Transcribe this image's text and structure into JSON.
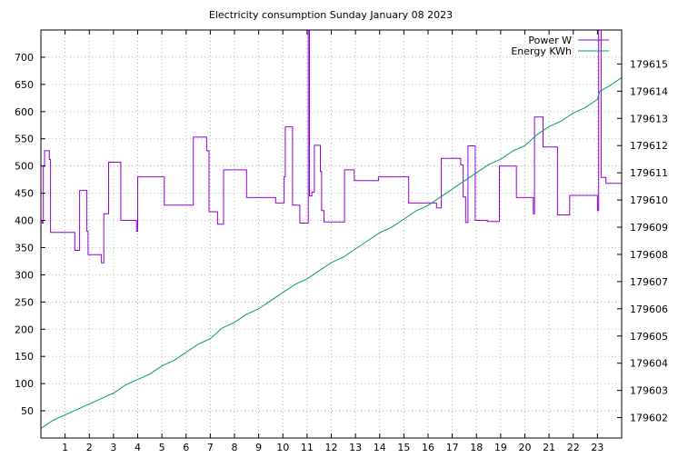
{
  "chart_data": {
    "type": "line",
    "title": "Electricity consumption Sunday January 08 2023",
    "xlabel": "",
    "ylabel": "",
    "y2label": "",
    "grid": true,
    "legend_position": "top-right",
    "xlim": [
      0,
      24
    ],
    "ylim": [
      0,
      750
    ],
    "y2lim": [
      179601.25,
      179616.25
    ],
    "x_ticks": [
      1,
      2,
      3,
      4,
      5,
      6,
      7,
      8,
      9,
      10,
      11,
      12,
      13,
      14,
      15,
      16,
      17,
      18,
      19,
      20,
      21,
      22,
      23
    ],
    "y_ticks": [
      50,
      100,
      150,
      200,
      250,
      300,
      350,
      400,
      450,
      500,
      550,
      600,
      650,
      700
    ],
    "y2_ticks": [
      179602,
      179603,
      179604,
      179605,
      179606,
      179607,
      179608,
      179609,
      179610,
      179611,
      179612,
      179613,
      179614,
      179615
    ],
    "series": [
      {
        "name": "Power W",
        "axis": "y1",
        "color": "#9400d3",
        "step": true,
        "points": [
          [
            0,
            400
          ],
          [
            0.05,
            395
          ],
          [
            0.1,
            500
          ],
          [
            0.15,
            528
          ],
          [
            0.35,
            512
          ],
          [
            0.4,
            378
          ],
          [
            1.4,
            345
          ],
          [
            1.6,
            455
          ],
          [
            1.9,
            380
          ],
          [
            1.95,
            337
          ],
          [
            2.5,
            322
          ],
          [
            2.6,
            412
          ],
          [
            2.8,
            507
          ],
          [
            3.3,
            400
          ],
          [
            3.95,
            380
          ],
          [
            4.0,
            480
          ],
          [
            5.1,
            428
          ],
          [
            6.3,
            553
          ],
          [
            6.85,
            528
          ],
          [
            6.95,
            416
          ],
          [
            7.3,
            393
          ],
          [
            7.55,
            493
          ],
          [
            8.5,
            442
          ],
          [
            9.7,
            432
          ],
          [
            10.05,
            480
          ],
          [
            10.1,
            572
          ],
          [
            10.4,
            428
          ],
          [
            10.7,
            395
          ],
          [
            11.05,
            760
          ],
          [
            11.1,
            445
          ],
          [
            11.2,
            452
          ],
          [
            11.3,
            538
          ],
          [
            11.55,
            490
          ],
          [
            11.6,
            418
          ],
          [
            11.7,
            397
          ],
          [
            12.55,
            493
          ],
          [
            12.95,
            473
          ],
          [
            13.95,
            480
          ],
          [
            15.2,
            432
          ],
          [
            16.35,
            423
          ],
          [
            16.55,
            514
          ],
          [
            17.35,
            502
          ],
          [
            17.45,
            443
          ],
          [
            17.55,
            396
          ],
          [
            17.65,
            537
          ],
          [
            17.95,
            400
          ],
          [
            18.45,
            398
          ],
          [
            18.95,
            500
          ],
          [
            19.65,
            442
          ],
          [
            20.35,
            412
          ],
          [
            20.4,
            590
          ],
          [
            20.75,
            535
          ],
          [
            21.35,
            410
          ],
          [
            21.85,
            446
          ],
          [
            23.0,
            418
          ],
          [
            23.05,
            760
          ],
          [
            23.15,
            479
          ],
          [
            23.35,
            468
          ],
          [
            24.0,
            468
          ]
        ]
      },
      {
        "name": "Energy KWh",
        "axis": "y2",
        "color": "#009e73",
        "step": false,
        "points": [
          [
            0,
            179601.6
          ],
          [
            0.5,
            179601.9
          ],
          [
            1,
            179602.1
          ],
          [
            1.5,
            179602.3
          ],
          [
            2,
            179602.5
          ],
          [
            2.5,
            179602.7
          ],
          [
            3,
            179602.9
          ],
          [
            3.5,
            179603.2
          ],
          [
            4,
            179603.4
          ],
          [
            4.5,
            179603.6
          ],
          [
            5,
            179603.9
          ],
          [
            5.5,
            179604.1
          ],
          [
            6,
            179604.4
          ],
          [
            6.5,
            179604.7
          ],
          [
            7,
            179604.9
          ],
          [
            7.5,
            179605.3
          ],
          [
            8,
            179605.5
          ],
          [
            8.5,
            179605.8
          ],
          [
            9,
            179606.0
          ],
          [
            9.5,
            179606.3
          ],
          [
            10,
            179606.6
          ],
          [
            10.5,
            179606.9
          ],
          [
            11,
            179607.1
          ],
          [
            11.5,
            179607.4
          ],
          [
            12,
            179607.7
          ],
          [
            12.5,
            179607.9
          ],
          [
            13,
            179608.2
          ],
          [
            13.5,
            179608.5
          ],
          [
            14,
            179608.8
          ],
          [
            14.5,
            179609.0
          ],
          [
            15,
            179609.3
          ],
          [
            15.5,
            179609.6
          ],
          [
            16,
            179609.8
          ],
          [
            16.5,
            179610.1
          ],
          [
            17,
            179610.4
          ],
          [
            17.5,
            179610.7
          ],
          [
            18,
            179611.0
          ],
          [
            18.5,
            179611.3
          ],
          [
            19,
            179611.5
          ],
          [
            19.5,
            179611.8
          ],
          [
            20,
            179612.0
          ],
          [
            20.5,
            179612.4
          ],
          [
            21,
            179612.7
          ],
          [
            21.5,
            179612.9
          ],
          [
            22,
            179613.2
          ],
          [
            22.5,
            179613.4
          ],
          [
            23,
            179613.7
          ],
          [
            23.1,
            179614.0
          ],
          [
            23.5,
            179614.2
          ],
          [
            24,
            179614.5
          ]
        ]
      }
    ]
  }
}
